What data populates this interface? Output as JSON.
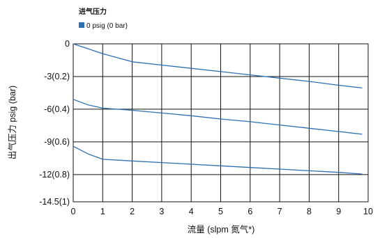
{
  "chart_data": {
    "type": "line",
    "legend": {
      "title": "进气压力",
      "entries": [
        {
          "label": "0 psig (0 bar)",
          "color": "#2e6fb0"
        }
      ]
    },
    "xlabel": "流量 (slpm 氮气*)",
    "ylabel": "出气压力 psig (bar)",
    "xlim": [
      0,
      10
    ],
    "ylim": [
      -14.5,
      0
    ],
    "x_ticks": [
      {
        "value": 0,
        "label": "0"
      },
      {
        "value": 1,
        "label": "1"
      },
      {
        "value": 2,
        "label": "2"
      },
      {
        "value": 3,
        "label": "3"
      },
      {
        "value": 4,
        "label": "4"
      },
      {
        "value": 5,
        "label": "5"
      },
      {
        "value": 6,
        "label": "6"
      },
      {
        "value": 7,
        "label": "7"
      },
      {
        "value": 8,
        "label": "8"
      },
      {
        "value": 9,
        "label": "9"
      },
      {
        "value": 10,
        "label": "10"
      }
    ],
    "y_ticks": [
      {
        "value": 0,
        "label": "0"
      },
      {
        "value": -3,
        "label": "-3(0.2)"
      },
      {
        "value": -6,
        "label": "-6(0.4)"
      },
      {
        "value": -9,
        "label": "-9(0.6)"
      },
      {
        "value": -12,
        "label": "-12(0.8)"
      },
      {
        "value": -14.5,
        "label": "-14.5(1)"
      }
    ],
    "grid": true,
    "line_color": "#2e6fb0",
    "series": [
      {
        "x": [
          0,
          0.5,
          1,
          2,
          3,
          4,
          5,
          6,
          7,
          8,
          9,
          9.8
        ],
        "y": [
          0,
          -0.45,
          -0.9,
          -1.65,
          -1.95,
          -2.25,
          -2.55,
          -2.85,
          -3.15,
          -3.45,
          -3.8,
          -4.05
        ]
      },
      {
        "x": [
          0,
          0.5,
          1,
          2,
          3,
          4,
          5,
          6,
          7,
          8,
          9,
          9.8
        ],
        "y": [
          -5.1,
          -5.6,
          -5.9,
          -6.1,
          -6.35,
          -6.6,
          -6.9,
          -7.15,
          -7.45,
          -7.75,
          -8.05,
          -8.3
        ]
      },
      {
        "x": [
          0,
          0.5,
          1,
          2,
          3,
          4,
          5,
          6,
          7,
          8,
          9,
          9.8
        ],
        "y": [
          -9.4,
          -10.1,
          -10.6,
          -10.75,
          -10.9,
          -11.05,
          -11.2,
          -11.35,
          -11.5,
          -11.65,
          -11.8,
          -11.95
        ]
      }
    ]
  }
}
